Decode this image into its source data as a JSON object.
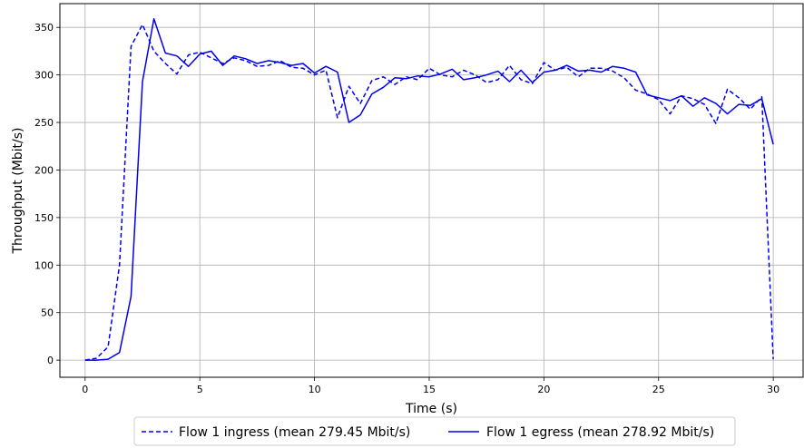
{
  "chart_data": {
    "type": "line",
    "xlabel": "Time (s)",
    "ylabel": "Throughput (Mbit/s)",
    "xlim": [
      -1.1,
      31.3
    ],
    "ylim": [
      -18,
      375
    ],
    "xticks": [
      0,
      5,
      10,
      15,
      20,
      25,
      30
    ],
    "yticks": [
      0,
      50,
      100,
      150,
      200,
      250,
      300,
      350
    ],
    "grid": true,
    "legend_position": "bottom-center",
    "series": [
      {
        "name": "Flow 1 ingress (mean 279.45 Mbit/s)",
        "style": "dashed",
        "color": "#0000ee",
        "x": [
          0,
          0.5,
          1.0,
          1.5,
          2.0,
          2.5,
          3.0,
          3.5,
          4.0,
          4.5,
          5.0,
          5.5,
          6.0,
          6.5,
          7.0,
          7.5,
          8.0,
          8.5,
          9.0,
          9.5,
          10.0,
          10.5,
          11.0,
          11.5,
          12.0,
          12.5,
          13.0,
          13.5,
          14.0,
          14.5,
          15.0,
          15.5,
          16.0,
          16.5,
          17.0,
          17.5,
          18.0,
          18.5,
          19.0,
          19.5,
          20.0,
          20.5,
          21.0,
          21.5,
          22.0,
          22.5,
          23.0,
          23.5,
          24.0,
          24.5,
          25.0,
          25.5,
          26.0,
          26.5,
          27.0,
          27.5,
          28.0,
          28.5,
          29.0,
          29.5,
          30.0
        ],
        "values": [
          0,
          2,
          14,
          100,
          330,
          353,
          325,
          312,
          301,
          321,
          324,
          318,
          312,
          318,
          315,
          309,
          310,
          315,
          308,
          307,
          300,
          305,
          255,
          288,
          270,
          294,
          298,
          290,
          298,
          295,
          307,
          300,
          298,
          305,
          300,
          292,
          295,
          310,
          295,
          291,
          313,
          305,
          308,
          298,
          307,
          307,
          304,
          297,
          284,
          280,
          274,
          259,
          278,
          275,
          269,
          249,
          285,
          276,
          264,
          277,
          1
        ]
      },
      {
        "name": "Flow 1 egress (mean 278.92 Mbit/s)",
        "style": "solid",
        "color": "#0000ee",
        "x": [
          0,
          0.5,
          1.0,
          1.5,
          2.0,
          2.5,
          3.0,
          3.5,
          4.0,
          4.5,
          5.0,
          5.5,
          6.0,
          6.5,
          7.0,
          7.5,
          8.0,
          8.5,
          9.0,
          9.5,
          10.0,
          10.5,
          11.0,
          11.5,
          12.0,
          12.5,
          13.0,
          13.5,
          14.0,
          14.5,
          15.0,
          15.5,
          16.0,
          16.5,
          17.0,
          17.5,
          18.0,
          18.5,
          19.0,
          19.5,
          20.0,
          20.5,
          21.0,
          21.5,
          22.0,
          22.5,
          23.0,
          23.5,
          24.0,
          24.5,
          25.0,
          25.5,
          26.0,
          26.5,
          27.0,
          27.5,
          28.0,
          28.5,
          29.0,
          29.5,
          30.0
        ],
        "values": [
          0,
          0,
          1,
          8,
          67,
          293,
          359,
          323,
          320,
          309,
          322,
          325,
          310,
          320,
          317,
          312,
          315,
          313,
          310,
          312,
          302,
          309,
          303,
          250,
          258,
          280,
          287,
          297,
          296,
          299,
          298,
          301,
          306,
          295,
          297,
          300,
          304,
          293,
          305,
          292,
          303,
          305,
          310,
          304,
          305,
          303,
          309,
          307,
          303,
          279,
          276,
          273,
          278,
          267,
          276,
          270,
          259,
          269,
          268,
          275,
          227
        ]
      }
    ]
  }
}
